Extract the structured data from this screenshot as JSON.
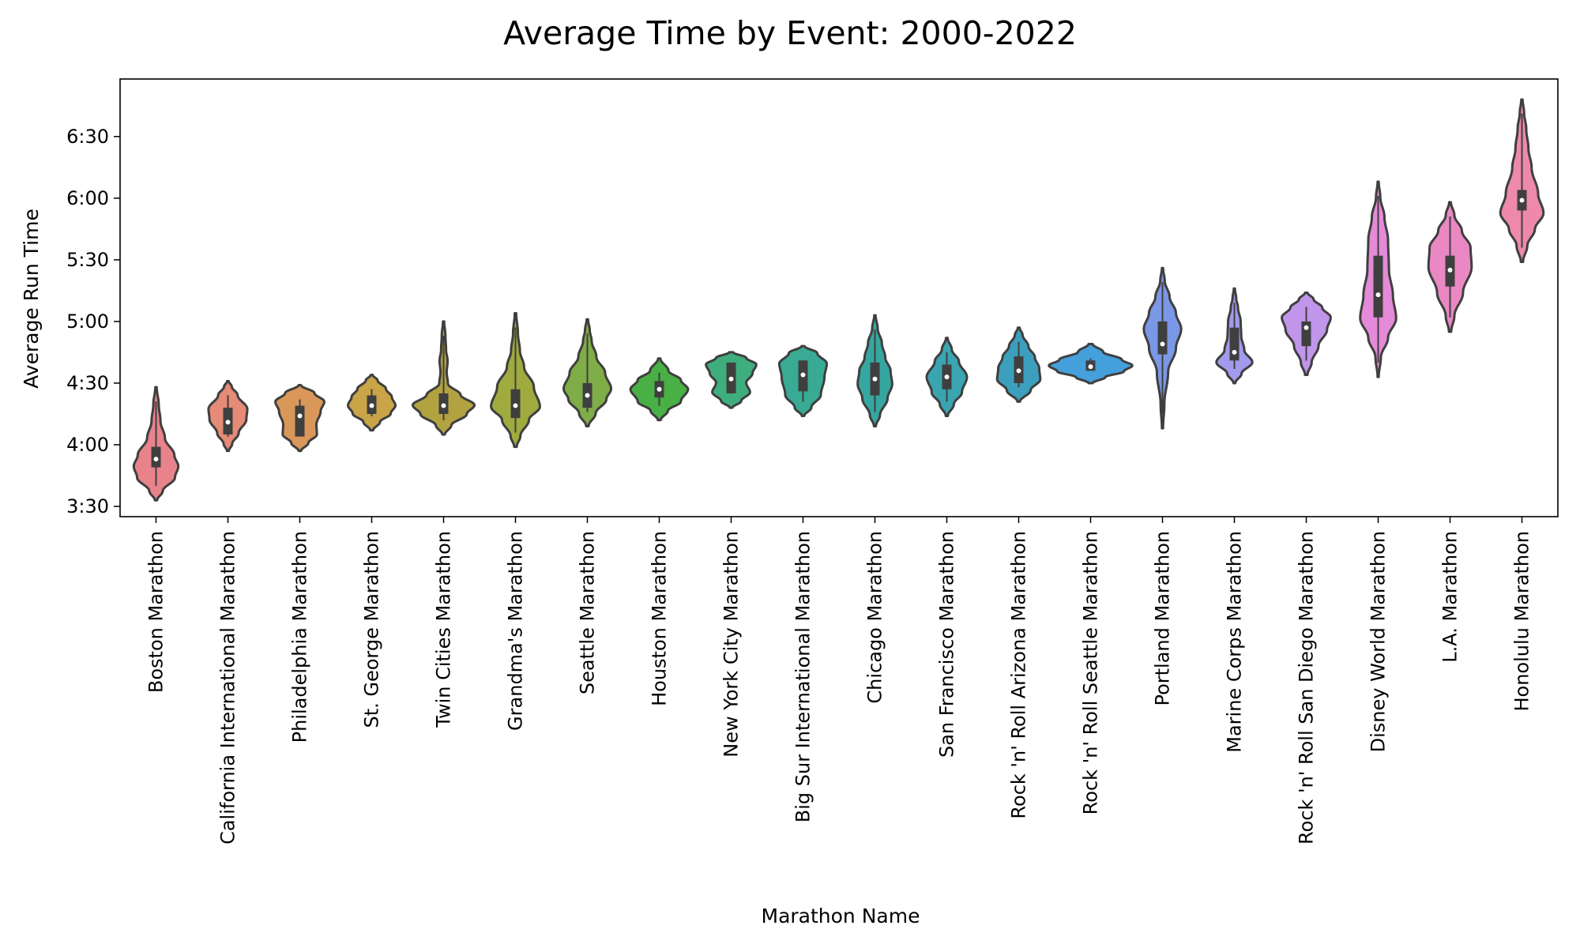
{
  "chart_data": {
    "type": "violin",
    "title": "Average Time by Event: 2000-2022",
    "xlabel": "Marathon Name",
    "ylabel": "Average Run Time",
    "y_unit": "hours:minutes",
    "ylim": [
      "3:25",
      "6:58"
    ],
    "y_ticks": [
      "3:30",
      "4:00",
      "4:30",
      "5:00",
      "5:30",
      "6:00",
      "6:30"
    ],
    "grid": false,
    "categories": [
      "Boston Marathon",
      "California International Marathon",
      "Philadelphia Marathon",
      "St. George Marathon",
      "Twin Cities Marathon",
      "Grandma's Marathon",
      "Seattle Marathon",
      "Houston Marathon",
      "New York City Marathon",
      "Big Sur International Marathon",
      "Chicago Marathon",
      "San Francisco Marathon",
      "Rock 'n' Roll Arizona Marathon",
      "Rock 'n' Roll Seattle Marathon",
      "Portland Marathon",
      "Marine Corps Marathon",
      "Rock 'n' Roll San Diego Marathon",
      "Disney World Marathon",
      "L.A. Marathon",
      "Honolulu Marathon"
    ],
    "violins": [
      {
        "color": "#e8838b",
        "min": "3:33",
        "max": "4:28",
        "q1": "3:49",
        "median": "3:53",
        "q3": "3:59",
        "max_width": 0.31,
        "shape": [
          [
            0,
            0.05
          ],
          [
            0.08,
            0.3
          ],
          [
            0.2,
            0.85
          ],
          [
            0.3,
            1
          ],
          [
            0.4,
            0.82
          ],
          [
            0.55,
            0.4
          ],
          [
            0.7,
            0.2
          ],
          [
            0.85,
            0.12
          ],
          [
            1,
            0.03
          ]
        ]
      },
      {
        "color": "#e58b77",
        "min": "3:57",
        "max": "4:31",
        "q1": "4:05",
        "median": "4:11",
        "q3": "4:18",
        "max_width": 0.27,
        "shape": [
          [
            0,
            0.05
          ],
          [
            0.1,
            0.22
          ],
          [
            0.25,
            0.55
          ],
          [
            0.45,
            0.95
          ],
          [
            0.6,
            1
          ],
          [
            0.8,
            0.5
          ],
          [
            0.92,
            0.2
          ],
          [
            1,
            0.04
          ]
        ]
      },
      {
        "color": "#d9985a",
        "min": "3:57",
        "max": "4:29",
        "q1": "4:04",
        "median": "4:14",
        "q3": "4:19",
        "max_width": 0.34,
        "shape": [
          [
            0,
            0.05
          ],
          [
            0.12,
            0.35
          ],
          [
            0.25,
            0.7
          ],
          [
            0.4,
            0.68
          ],
          [
            0.6,
            0.85
          ],
          [
            0.75,
            1
          ],
          [
            0.88,
            0.6
          ],
          [
            1,
            0.05
          ]
        ]
      },
      {
        "color": "#c9a548",
        "min": "4:07",
        "max": "4:34",
        "q1": "4:15",
        "median": "4:19",
        "q3": "4:24",
        "max_width": 0.33,
        "shape": [
          [
            0,
            0.06
          ],
          [
            0.15,
            0.35
          ],
          [
            0.3,
            0.8
          ],
          [
            0.45,
            1
          ],
          [
            0.6,
            0.85
          ],
          [
            0.75,
            0.6
          ],
          [
            0.9,
            0.25
          ],
          [
            1,
            0.04
          ]
        ]
      },
      {
        "color": "#b3a340",
        "min": "4:05",
        "max": "5:00",
        "q1": "4:15",
        "median": "4:19",
        "q3": "4:25",
        "max_width": 0.43,
        "shape": [
          [
            0,
            0.04
          ],
          [
            0.08,
            0.25
          ],
          [
            0.18,
            0.75
          ],
          [
            0.26,
            1
          ],
          [
            0.35,
            0.55
          ],
          [
            0.45,
            0.14
          ],
          [
            0.55,
            0.1
          ],
          [
            0.65,
            0.13
          ],
          [
            0.75,
            0.08
          ],
          [
            0.87,
            0.06
          ],
          [
            1,
            0.02
          ]
        ]
      },
      {
        "color": "#9fab3f",
        "min": "3:59",
        "max": "5:04",
        "q1": "4:13",
        "median": "4:19",
        "q3": "4:27",
        "max_width": 0.34,
        "shape": [
          [
            0,
            0.05
          ],
          [
            0.08,
            0.2
          ],
          [
            0.2,
            0.55
          ],
          [
            0.3,
            1
          ],
          [
            0.45,
            0.75
          ],
          [
            0.6,
            0.35
          ],
          [
            0.72,
            0.18
          ],
          [
            0.85,
            0.1
          ],
          [
            1,
            0.03
          ]
        ]
      },
      {
        "color": "#7fad48",
        "min": "4:09",
        "max": "5:01",
        "q1": "4:18",
        "median": "4:24",
        "q3": "4:30",
        "max_width": 0.33,
        "shape": [
          [
            0,
            0.05
          ],
          [
            0.12,
            0.35
          ],
          [
            0.25,
            0.8
          ],
          [
            0.35,
            1
          ],
          [
            0.5,
            0.75
          ],
          [
            0.65,
            0.38
          ],
          [
            0.8,
            0.18
          ],
          [
            0.9,
            0.1
          ],
          [
            1,
            0.03
          ]
        ]
      },
      {
        "color": "#48b045",
        "min": "4:12",
        "max": "4:42",
        "q1": "4:23",
        "median": "4:27",
        "q3": "4:31",
        "max_width": 0.4,
        "shape": [
          [
            0,
            0.05
          ],
          [
            0.15,
            0.3
          ],
          [
            0.3,
            0.75
          ],
          [
            0.5,
            1
          ],
          [
            0.65,
            0.75
          ],
          [
            0.8,
            0.32
          ],
          [
            1,
            0.04
          ]
        ]
      },
      {
        "color": "#3fae7d",
        "min": "4:18",
        "max": "4:45",
        "q1": "4:25",
        "median": "4:32",
        "q3": "4:40",
        "max_width": 0.35,
        "shape": [
          [
            0,
            0.05
          ],
          [
            0.12,
            0.4
          ],
          [
            0.28,
            0.75
          ],
          [
            0.45,
            0.6
          ],
          [
            0.62,
            0.85
          ],
          [
            0.78,
            1
          ],
          [
            0.9,
            0.6
          ],
          [
            1,
            0.08
          ]
        ]
      },
      {
        "color": "#39ab94",
        "min": "4:14",
        "max": "4:48",
        "q1": "4:26",
        "median": "4:34",
        "q3": "4:41",
        "max_width": 0.33,
        "shape": [
          [
            0,
            0.05
          ],
          [
            0.12,
            0.35
          ],
          [
            0.3,
            0.75
          ],
          [
            0.55,
            0.9
          ],
          [
            0.75,
            1
          ],
          [
            0.9,
            0.6
          ],
          [
            1,
            0.06
          ]
        ]
      },
      {
        "color": "#36a7a0",
        "min": "4:09",
        "max": "5:03",
        "q1": "4:24",
        "median": "4:32",
        "q3": "4:40",
        "max_width": 0.32,
        "shape": [
          [
            0,
            0.04
          ],
          [
            0.1,
            0.22
          ],
          [
            0.25,
            0.55
          ],
          [
            0.38,
            0.75
          ],
          [
            0.5,
            0.68
          ],
          [
            0.62,
            0.45
          ],
          [
            0.75,
            0.3
          ],
          [
            0.88,
            0.12
          ],
          [
            1,
            0.03
          ]
        ]
      },
      {
        "color": "#3aa4b0",
        "min": "4:14",
        "max": "4:52",
        "q1": "4:27",
        "median": "4:33",
        "q3": "4:39",
        "max_width": 0.28,
        "shape": [
          [
            0,
            0.05
          ],
          [
            0.15,
            0.35
          ],
          [
            0.3,
            0.75
          ],
          [
            0.5,
            1
          ],
          [
            0.7,
            0.6
          ],
          [
            0.85,
            0.25
          ],
          [
            1,
            0.04
          ]
        ]
      },
      {
        "color": "#3c9fbd",
        "min": "4:21",
        "max": "4:57",
        "q1": "4:30",
        "median": "4:36",
        "q3": "4:43",
        "max_width": 0.3,
        "shape": [
          [
            0,
            0.06
          ],
          [
            0.15,
            0.55
          ],
          [
            0.3,
            1
          ],
          [
            0.45,
            0.95
          ],
          [
            0.6,
            0.75
          ],
          [
            0.75,
            0.45
          ],
          [
            0.9,
            0.18
          ],
          [
            1,
            0.04
          ]
        ]
      },
      {
        "color": "#45a0dc",
        "min": "4:30",
        "max": "4:49",
        "q1": "4:36",
        "median": "4:38",
        "q3": "4:41",
        "max_width": 0.58,
        "shape": [
          [
            0,
            0.05
          ],
          [
            0.15,
            0.35
          ],
          [
            0.3,
            0.8
          ],
          [
            0.45,
            1
          ],
          [
            0.6,
            0.75
          ],
          [
            0.8,
            0.3
          ],
          [
            1,
            0.05
          ]
        ]
      },
      {
        "color": "#7b98e6",
        "min": "4:08",
        "max": "5:26",
        "q1": "4:44",
        "median": "4:49",
        "q3": "5:00",
        "max_width": 0.26,
        "shape": [
          [
            0,
            0.03
          ],
          [
            0.15,
            0.1
          ],
          [
            0.35,
            0.3
          ],
          [
            0.5,
            0.72
          ],
          [
            0.62,
            1
          ],
          [
            0.72,
            0.72
          ],
          [
            0.82,
            0.38
          ],
          [
            0.92,
            0.12
          ],
          [
            1,
            0.03
          ]
        ]
      },
      {
        "color": "#a29aec",
        "min": "4:30",
        "max": "5:16",
        "q1": "4:41",
        "median": "4:45",
        "q3": "4:57",
        "max_width": 0.25,
        "shape": [
          [
            0,
            0.05
          ],
          [
            0.1,
            0.4
          ],
          [
            0.22,
            1
          ],
          [
            0.35,
            0.55
          ],
          [
            0.5,
            0.38
          ],
          [
            0.65,
            0.35
          ],
          [
            0.8,
            0.2
          ],
          [
            0.9,
            0.1
          ],
          [
            1,
            0.03
          ]
        ]
      },
      {
        "color": "#c195ea",
        "min": "4:34",
        "max": "5:14",
        "q1": "4:48",
        "median": "4:57",
        "q3": "5:00",
        "max_width": 0.34,
        "shape": [
          [
            0,
            0.05
          ],
          [
            0.15,
            0.22
          ],
          [
            0.35,
            0.5
          ],
          [
            0.55,
            0.85
          ],
          [
            0.7,
            1
          ],
          [
            0.82,
            0.65
          ],
          [
            0.92,
            0.3
          ],
          [
            1,
            0.05
          ]
        ]
      },
      {
        "color": "#e58ad8",
        "min": "4:33",
        "max": "6:08",
        "q1": "5:02",
        "median": "5:13",
        "q3": "5:32",
        "max_width": 0.25,
        "shape": [
          [
            0,
            0.03
          ],
          [
            0.1,
            0.15
          ],
          [
            0.2,
            0.55
          ],
          [
            0.3,
            1
          ],
          [
            0.42,
            0.82
          ],
          [
            0.55,
            0.6
          ],
          [
            0.7,
            0.55
          ],
          [
            0.82,
            0.35
          ],
          [
            0.92,
            0.12
          ],
          [
            1,
            0.03
          ]
        ]
      },
      {
        "color": "#ea88c4",
        "min": "4:55",
        "max": "5:58",
        "q1": "5:17",
        "median": "5:25",
        "q3": "5:32",
        "max_width": 0.3,
        "shape": [
          [
            0,
            0.05
          ],
          [
            0.12,
            0.2
          ],
          [
            0.3,
            0.6
          ],
          [
            0.5,
            1
          ],
          [
            0.65,
            0.95
          ],
          [
            0.78,
            0.55
          ],
          [
            0.9,
            0.2
          ],
          [
            1,
            0.04
          ]
        ]
      },
      {
        "color": "#ee89ac",
        "min": "5:29",
        "max": "6:48",
        "q1": "5:54",
        "median": "5:59",
        "q3": "6:04",
        "max_width": 0.3,
        "shape": [
          [
            0,
            0.05
          ],
          [
            0.1,
            0.25
          ],
          [
            0.2,
            0.6
          ],
          [
            0.3,
            1
          ],
          [
            0.42,
            0.75
          ],
          [
            0.58,
            0.45
          ],
          [
            0.7,
            0.3
          ],
          [
            0.82,
            0.2
          ],
          [
            0.92,
            0.1
          ],
          [
            1,
            0.03
          ]
        ]
      }
    ]
  }
}
